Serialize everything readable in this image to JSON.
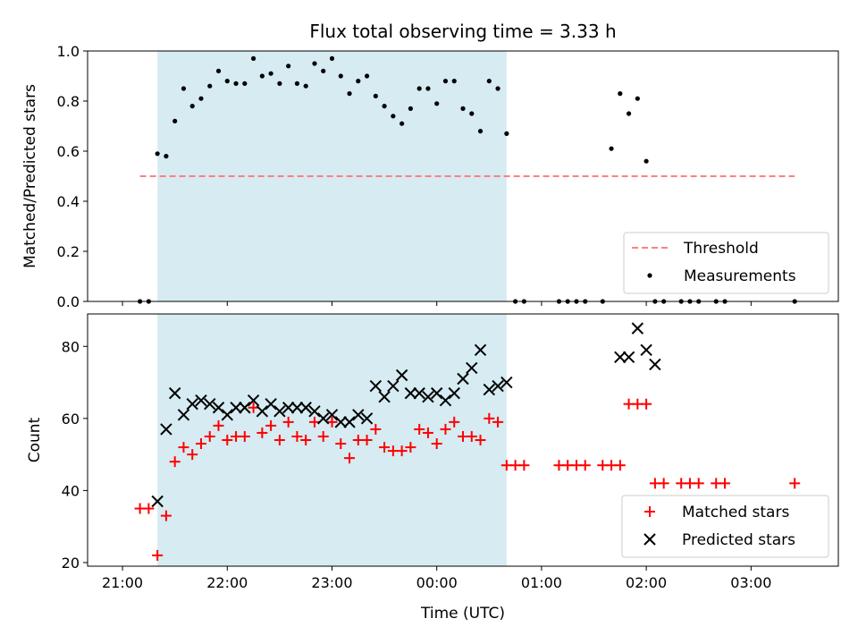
{
  "chart_data": {
    "type": "scatter",
    "title": "Flux total observing time = 3.33 h",
    "xlabel": "Time (UTC)",
    "x_ticks": [
      "21:00",
      "22:00",
      "23:00",
      "00:00",
      "01:00",
      "02:00",
      "03:00"
    ],
    "observing_window": {
      "start": "21:20",
      "end": "00:40",
      "color": "#add8e6"
    },
    "panels": [
      {
        "ylabel": "Matched/Predicted stars",
        "ylim": [
          0,
          1.0
        ],
        "y_ticks": [
          "0.0",
          "0.2",
          "0.4",
          "0.6",
          "0.8",
          "1.0"
        ],
        "legend_position": "lower-right",
        "threshold": {
          "name": "Threshold",
          "value": 0.5,
          "x_start": "21:10",
          "x_end": "03:25",
          "color": "#ff7f7f"
        },
        "series": [
          {
            "name": "Measurements",
            "marker": "dot",
            "color": "#000000",
            "x": [
              "21:10",
              "21:15",
              "21:20",
              "21:25",
              "21:30",
              "21:35",
              "21:40",
              "21:45",
              "21:50",
              "21:55",
              "22:00",
              "22:05",
              "22:10",
              "22:15",
              "22:20",
              "22:25",
              "22:30",
              "22:35",
              "22:40",
              "22:45",
              "22:50",
              "22:55",
              "23:00",
              "23:05",
              "23:10",
              "23:15",
              "23:20",
              "23:25",
              "23:30",
              "23:35",
              "23:40",
              "23:45",
              "23:50",
              "23:55",
              "00:00",
              "00:05",
              "00:10",
              "00:15",
              "00:20",
              "00:25",
              "00:30",
              "00:35",
              "00:40",
              "00:45",
              "00:50",
              "01:10",
              "01:15",
              "01:20",
              "01:25",
              "01:35",
              "01:40",
              "01:45",
              "01:50",
              "01:55",
              "02:00",
              "02:05",
              "02:10",
              "02:20",
              "02:25",
              "02:30",
              "02:40",
              "02:45",
              "03:25"
            ],
            "y": [
              0,
              0,
              0.59,
              0.58,
              0.72,
              0.85,
              0.78,
              0.81,
              0.86,
              0.92,
              0.88,
              0.87,
              0.87,
              0.97,
              0.9,
              0.91,
              0.87,
              0.94,
              0.87,
              0.86,
              0.95,
              0.92,
              0.97,
              0.9,
              0.83,
              0.88,
              0.9,
              0.82,
              0.78,
              0.74,
              0.71,
              0.77,
              0.85,
              0.85,
              0.79,
              0.88,
              0.88,
              0.77,
              0.75,
              0.68,
              0.88,
              0.85,
              0.67,
              0,
              0,
              0,
              0,
              0,
              0,
              0,
              0.61,
              0.83,
              0.75,
              0.81,
              0.56,
              0,
              0,
              0,
              0,
              0,
              0,
              0,
              0
            ]
          }
        ]
      },
      {
        "ylabel": "Count",
        "ylim": [
          19,
          89
        ],
        "y_ticks": [
          "20",
          "40",
          "60",
          "80"
        ],
        "legend_position": "lower-right",
        "series": [
          {
            "name": "Matched stars",
            "marker": "plus",
            "color": "#ff0000",
            "x": [
              "21:10",
              "21:15",
              "21:20",
              "21:25",
              "21:30",
              "21:35",
              "21:40",
              "21:45",
              "21:50",
              "21:55",
              "22:00",
              "22:05",
              "22:10",
              "22:15",
              "22:20",
              "22:25",
              "22:30",
              "22:35",
              "22:40",
              "22:45",
              "22:50",
              "22:55",
              "23:00",
              "23:05",
              "23:10",
              "23:15",
              "23:20",
              "23:25",
              "23:30",
              "23:35",
              "23:40",
              "23:45",
              "23:50",
              "23:55",
              "00:00",
              "00:05",
              "00:10",
              "00:15",
              "00:20",
              "00:25",
              "00:30",
              "00:35",
              "00:40",
              "00:45",
              "00:50",
              "01:10",
              "01:15",
              "01:20",
              "01:25",
              "01:35",
              "01:40",
              "01:45",
              "01:50",
              "01:55",
              "02:00",
              "02:05",
              "02:10",
              "02:20",
              "02:25",
              "02:30",
              "02:40",
              "02:45",
              "03:25"
            ],
            "y": [
              35,
              35,
              22,
              33,
              48,
              52,
              50,
              53,
              55,
              58,
              54,
              55,
              55,
              63,
              56,
              58,
              54,
              59,
              55,
              54,
              59,
              55,
              59,
              53,
              49,
              54,
              54,
              57,
              52,
              51,
              51,
              52,
              57,
              56,
              53,
              57,
              59,
              55,
              55,
              54,
              60,
              59,
              47,
              47,
              47,
              47,
              47,
              47,
              47,
              47,
              47,
              47,
              64,
              64,
              64,
              42,
              42,
              42,
              42,
              42,
              42,
              42,
              42
            ]
          },
          {
            "name": "Predicted stars",
            "marker": "x",
            "color": "#000000",
            "x": [
              "21:20",
              "21:25",
              "21:30",
              "21:35",
              "21:40",
              "21:45",
              "21:50",
              "21:55",
              "22:00",
              "22:05",
              "22:10",
              "22:15",
              "22:20",
              "22:25",
              "22:30",
              "22:35",
              "22:40",
              "22:45",
              "22:50",
              "22:55",
              "23:00",
              "23:05",
              "23:10",
              "23:15",
              "23:20",
              "23:25",
              "23:30",
              "23:35",
              "23:40",
              "23:45",
              "23:50",
              "23:55",
              "00:00",
              "00:05",
              "00:10",
              "00:15",
              "00:20",
              "00:25",
              "00:30",
              "00:35",
              "00:40",
              "01:45",
              "01:50",
              "01:55",
              "02:00",
              "02:05"
            ],
            "y": [
              37,
              57,
              67,
              61,
              64,
              65,
              64,
              63,
              61,
              63,
              63,
              65,
              62,
              64,
              62,
              63,
              63,
              63,
              62,
              60,
              61,
              59,
              59,
              61,
              60,
              69,
              66,
              69,
              72,
              67,
              67,
              66,
              67,
              65,
              67,
              71,
              74,
              79,
              68,
              69,
              70,
              77,
              77,
              85,
              79,
              75
            ]
          }
        ]
      }
    ]
  }
}
